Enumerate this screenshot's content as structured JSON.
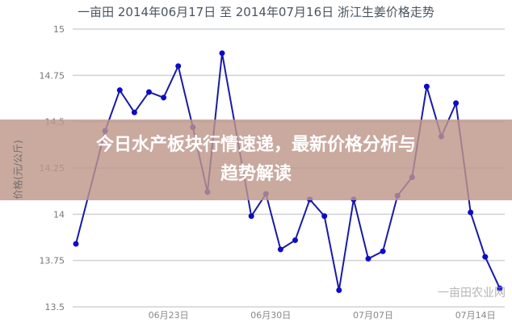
{
  "chart_data": {
    "type": "line",
    "title": "一亩田 2014年06月17日 至 2014年07月16日 浙江生姜价格走势",
    "ylabel": "价格(元/公斤)",
    "xlabel": "",
    "ylim": [
      13.5,
      15
    ],
    "yticks": [
      "13.5",
      "13.75",
      "14",
      "14.25",
      "14.5",
      "14.75",
      "15"
    ],
    "xticks": [
      {
        "date": "06-23",
        "label": "06月23日"
      },
      {
        "date": "06-30",
        "label": "06月30日"
      },
      {
        "date": "07-07",
        "label": "07月07日"
      },
      {
        "date": "07-14",
        "label": "07月14日"
      }
    ],
    "grid": true,
    "line_color": "#1a1aa6",
    "x": [
      "06-17",
      "06-19",
      "06-20",
      "06-21",
      "06-22",
      "06-23",
      "06-24",
      "06-25",
      "06-26",
      "06-27",
      "06-29",
      "06-30",
      "07-01",
      "07-02",
      "07-03",
      "07-04",
      "07-05",
      "07-06",
      "07-07",
      "07-08",
      "07-09",
      "07-10",
      "07-11",
      "07-12",
      "07-13",
      "07-14",
      "07-15",
      "07-16"
    ],
    "values": [
      13.84,
      14.45,
      14.67,
      14.55,
      14.66,
      14.63,
      14.8,
      14.47,
      14.12,
      14.87,
      13.99,
      14.11,
      13.81,
      13.86,
      14.08,
      13.99,
      13.59,
      14.08,
      13.76,
      13.8,
      14.1,
      14.2,
      14.69,
      14.42,
      14.6,
      14.01,
      13.77,
      13.6
    ]
  },
  "watermark": "一亩田农业网",
  "banner": {
    "line1": "今日水产板块行情速递，最新价格分析与",
    "line2": "趋势解读"
  }
}
